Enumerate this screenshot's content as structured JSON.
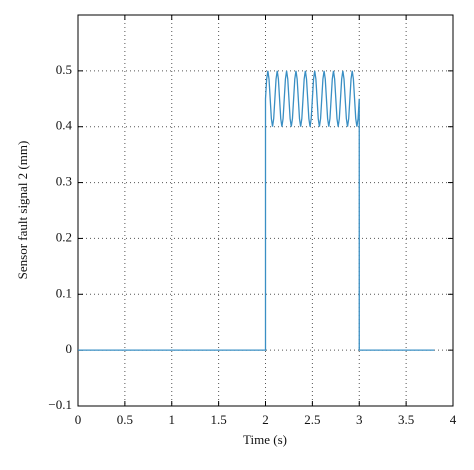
{
  "chart_data": {
    "type": "line",
    "x_label": "Time (s)",
    "y_label": "Sensor fault signal 2 (mm)",
    "xlim": [
      0,
      4
    ],
    "ylim": [
      -0.1,
      0.6
    ],
    "xticks": [
      0,
      0.5,
      1,
      1.5,
      2,
      2.5,
      3,
      3.5,
      4
    ],
    "yticks": [
      {
        "value": -0.1,
        "label": "−0.1"
      },
      0,
      0.1,
      0.2,
      0.3,
      0.4,
      0.5
    ],
    "grid": true,
    "x": [
      0,
      2,
      2,
      2.0125,
      2.025,
      2.0375,
      2.05,
      2.0625,
      2.075,
      2.0875,
      2.1,
      2.1125,
      2.125,
      2.1375,
      2.15,
      2.1625,
      2.175,
      2.1875,
      2.2,
      2.2125,
      2.225,
      2.2375,
      2.25,
      2.2625,
      2.275,
      2.2875,
      2.3,
      2.3125,
      2.325,
      2.3375,
      2.35,
      2.3625,
      2.375,
      2.3875,
      2.4,
      2.4125,
      2.425,
      2.4375,
      2.45,
      2.4625,
      2.475,
      2.4875,
      2.5,
      2.5125,
      2.525,
      2.5375,
      2.55,
      2.5625,
      2.575,
      2.5875,
      2.6,
      2.6125,
      2.625,
      2.6375,
      2.65,
      2.6625,
      2.675,
      2.6875,
      2.7,
      2.7125,
      2.725,
      2.7375,
      2.75,
      2.7625,
      2.775,
      2.7875,
      2.8,
      2.8125,
      2.825,
      2.8375,
      2.85,
      2.8625,
      2.875,
      2.8875,
      2.9,
      2.9125,
      2.925,
      2.9375,
      2.95,
      2.9625,
      2.975,
      2.9875,
      3,
      3,
      3.8
    ],
    "series": [
      {
        "color": "#3a8fc4",
        "values": [
          0,
          0,
          0.45,
          0.4854,
          0.5,
          0.4854,
          0.45,
          0.4146,
          0.4,
          0.4146,
          0.45,
          0.4854,
          0.5,
          0.4854,
          0.45,
          0.4146,
          0.4,
          0.4146,
          0.45,
          0.4854,
          0.5,
          0.4854,
          0.45,
          0.4146,
          0.4,
          0.4146,
          0.45,
          0.4854,
          0.5,
          0.4854,
          0.45,
          0.4146,
          0.4,
          0.4146,
          0.45,
          0.4854,
          0.5,
          0.4854,
          0.45,
          0.4146,
          0.4,
          0.4146,
          0.45,
          0.4854,
          0.5,
          0.4854,
          0.45,
          0.4146,
          0.4,
          0.4146,
          0.45,
          0.4854,
          0.5,
          0.4854,
          0.45,
          0.4146,
          0.4,
          0.4146,
          0.45,
          0.4854,
          0.5,
          0.4854,
          0.45,
          0.4146,
          0.4,
          0.4146,
          0.45,
          0.4854,
          0.5,
          0.4854,
          0.45,
          0.4146,
          0.4,
          0.4146,
          0.45,
          0.4854,
          0.5,
          0.4854,
          0.45,
          0.4146,
          0.4,
          0.4146,
          0.45,
          0,
          0
        ]
      }
    ]
  }
}
